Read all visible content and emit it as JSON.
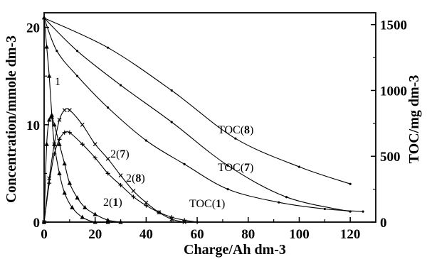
{
  "chart_data": {
    "type": "line",
    "title": "",
    "xlabel": "Charge/Ah dm-3",
    "ylabel_left": "Concentration/mmole dm-3",
    "ylabel_right": "TOC/mg dm-3",
    "xlim": [
      0,
      130
    ],
    "ylim_left": [
      0,
      21.5
    ],
    "ylim_right": [
      0,
      1590
    ],
    "x_ticks": [
      "0",
      "20",
      "40",
      "60",
      "80",
      "100",
      "120"
    ],
    "y_left_ticks": [
      "0",
      "10",
      "20"
    ],
    "y_right_ticks": [
      "0",
      "500",
      "1000",
      "1500"
    ],
    "grid": false,
    "legend": "none",
    "series": [
      {
        "name": "TOC(8)",
        "label_main": "TOC(",
        "label_num": "8",
        "label_end": ")",
        "axis": "right",
        "points": [
          [
            0,
            1550
          ],
          [
            25,
            1325
          ],
          [
            50,
            1000
          ],
          [
            75,
            635
          ],
          [
            100,
            420
          ],
          [
            120,
            290
          ]
        ]
      },
      {
        "name": "TOC(7)",
        "label_main": "TOC(",
        "label_num": "7",
        "label_end": ")",
        "axis": "right",
        "points": [
          [
            0,
            1550
          ],
          [
            13,
            1300
          ],
          [
            30,
            1040
          ],
          [
            50,
            760
          ],
          [
            72,
            430
          ],
          [
            95,
            190
          ],
          [
            120,
            80
          ]
        ]
      },
      {
        "name": "TOC(1)",
        "label_main": "TOC(",
        "label_num": "1",
        "label_end": ")",
        "axis": "right",
        "points": [
          [
            0,
            1550
          ],
          [
            5,
            1300
          ],
          [
            13,
            1110
          ],
          [
            25,
            870
          ],
          [
            40,
            620
          ],
          [
            55,
            440
          ],
          [
            72,
            250
          ],
          [
            92,
            150
          ],
          [
            110,
            100
          ],
          [
            125,
            80
          ]
        ]
      },
      {
        "name": "1",
        "label_main": "1",
        "label_num": "",
        "label_end": "",
        "axis": "left",
        "points": [
          [
            0,
            21
          ],
          [
            1,
            18
          ],
          [
            2,
            15
          ],
          [
            3,
            11
          ],
          [
            4,
            8
          ],
          [
            6,
            5
          ],
          [
            8,
            3
          ],
          [
            11,
            1.5
          ],
          [
            15,
            0.5
          ],
          [
            20,
            0
          ],
          [
            25,
            0
          ]
        ]
      },
      {
        "name": "2(7)",
        "label_main": "2(",
        "label_num": "7",
        "label_end": ")",
        "axis": "left",
        "points": [
          [
            0,
            0
          ],
          [
            2,
            4.5
          ],
          [
            4,
            8
          ],
          [
            6,
            10.5
          ],
          [
            8,
            11.5
          ],
          [
            10,
            11.5
          ],
          [
            15,
            10
          ],
          [
            20,
            8
          ],
          [
            25,
            6.5
          ],
          [
            30,
            4.8
          ],
          [
            35,
            3.2
          ],
          [
            40,
            2
          ],
          [
            45,
            1
          ],
          [
            50,
            0.3
          ],
          [
            55,
            0
          ]
        ]
      },
      {
        "name": "2(8)",
        "label_main": "2(",
        "label_num": "8",
        "label_end": ")",
        "axis": "left",
        "points": [
          [
            0,
            0
          ],
          [
            2,
            4
          ],
          [
            4,
            7
          ],
          [
            6,
            8.5
          ],
          [
            8,
            9.2
          ],
          [
            10,
            9.2
          ],
          [
            15,
            8
          ],
          [
            20,
            6.6
          ],
          [
            25,
            5
          ],
          [
            30,
            3.8
          ],
          [
            35,
            2.6
          ],
          [
            40,
            1.7
          ],
          [
            45,
            1
          ],
          [
            50,
            0.5
          ],
          [
            55,
            0.2
          ],
          [
            60,
            0
          ]
        ]
      },
      {
        "name": "2(1)",
        "label_main": "2(",
        "label_num": "1",
        "label_end": ")",
        "axis": "left",
        "points": [
          [
            0,
            0
          ],
          [
            1,
            8
          ],
          [
            2,
            10.5
          ],
          [
            3,
            10.8
          ],
          [
            4,
            10
          ],
          [
            6,
            8
          ],
          [
            8,
            6
          ],
          [
            10,
            4
          ],
          [
            13,
            2.5
          ],
          [
            16,
            1.5
          ],
          [
            20,
            0.8
          ],
          [
            25,
            0.2
          ],
          [
            30,
            0
          ]
        ]
      }
    ]
  }
}
